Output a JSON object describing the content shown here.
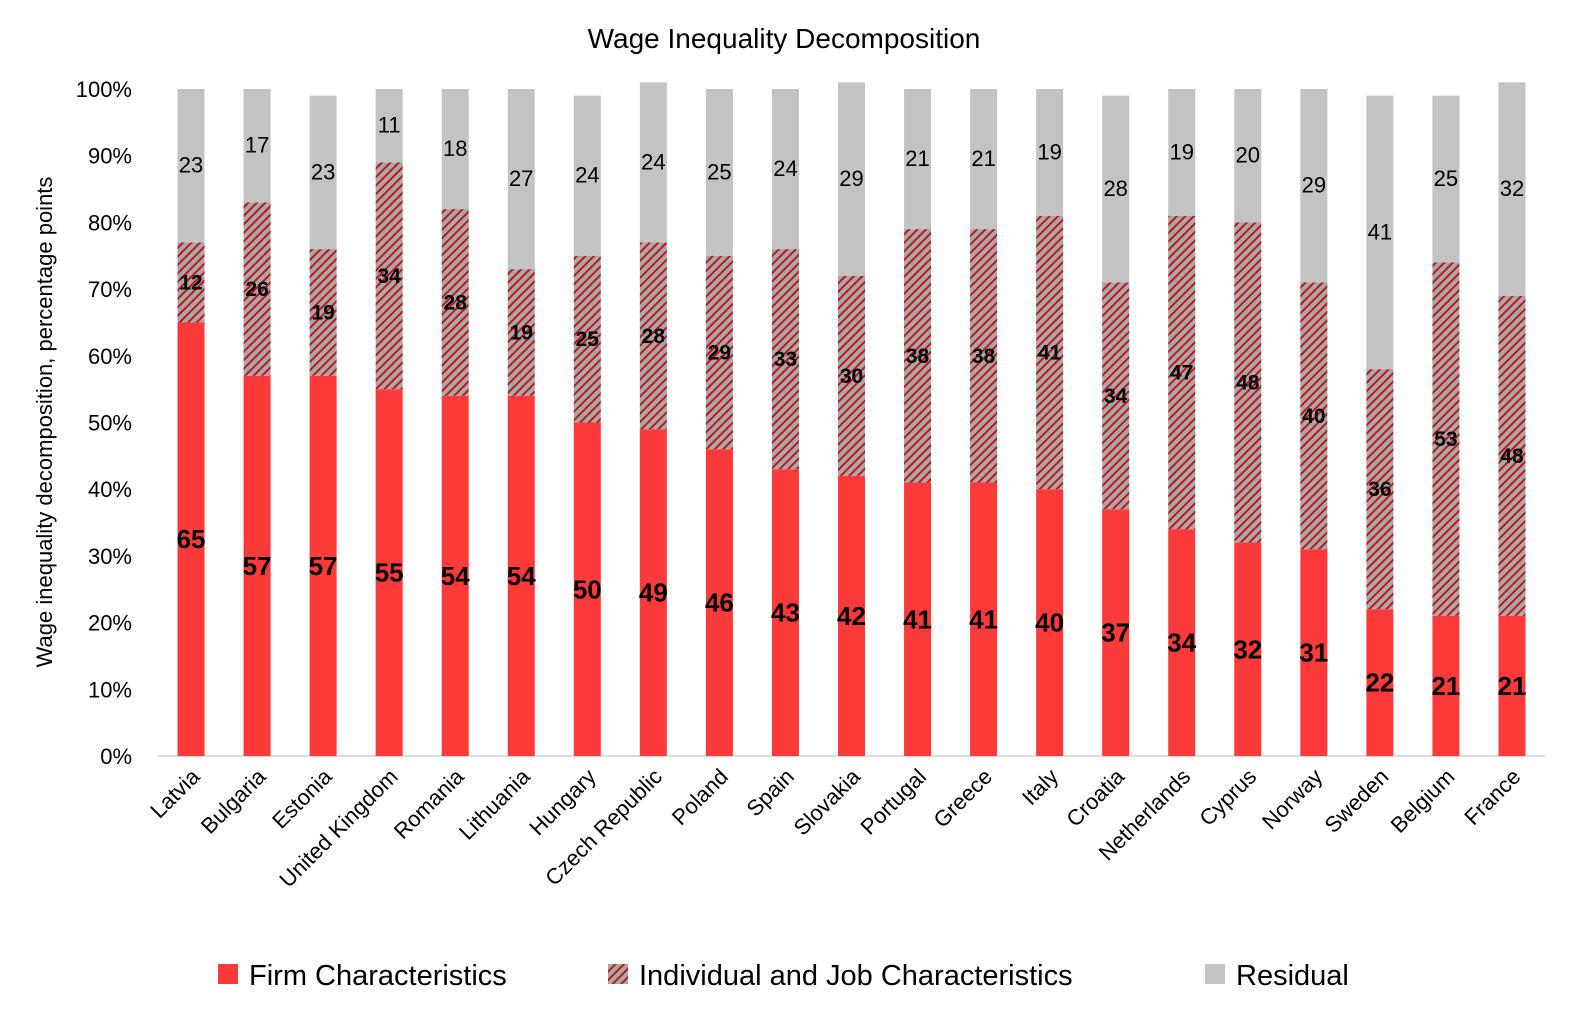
{
  "chart_data": {
    "type": "bar",
    "stacked": true,
    "title": "Wage Inequality Decomposition",
    "xlabel": "",
    "ylabel": "Wage inequality decomposition, percentage points",
    "ylim": [
      0,
      100
    ],
    "yticks": [
      "0%",
      "10%",
      "20%",
      "30%",
      "40%",
      "50%",
      "60%",
      "70%",
      "80%",
      "90%",
      "100%"
    ],
    "legend_position": "bottom",
    "categories": [
      "Latvia",
      "Bulgaria",
      "Estonia",
      "United Kingdom",
      "Romania",
      "Lithuania",
      "Hungary",
      "Czech Republic",
      "Poland",
      "Spain",
      "Slovakia",
      "Portugal",
      "Greece",
      "Italy",
      "Croatia",
      "Netherlands",
      "Cyprus",
      "Norway",
      "Sweden",
      "Belgium",
      "France"
    ],
    "series": [
      {
        "name": "Firm Characteristics",
        "color": "#fc3a3a",
        "values": [
          65,
          57,
          57,
          55,
          54,
          54,
          50,
          49,
          46,
          43,
          42,
          41,
          41,
          40,
          37,
          34,
          32,
          31,
          22,
          21,
          21
        ]
      },
      {
        "name": "Individual and Job Characteristics",
        "color": "#a9a9a9",
        "pattern": "red-hatch",
        "values": [
          12,
          26,
          19,
          34,
          28,
          19,
          25,
          28,
          29,
          33,
          30,
          38,
          38,
          41,
          34,
          47,
          48,
          40,
          36,
          53,
          48
        ]
      },
      {
        "name": "Residual",
        "color": "#c3c3c3",
        "values": [
          23,
          17,
          23,
          11,
          18,
          27,
          24,
          24,
          25,
          24,
          29,
          21,
          21,
          19,
          28,
          19,
          20,
          29,
          41,
          25,
          32
        ]
      }
    ]
  }
}
